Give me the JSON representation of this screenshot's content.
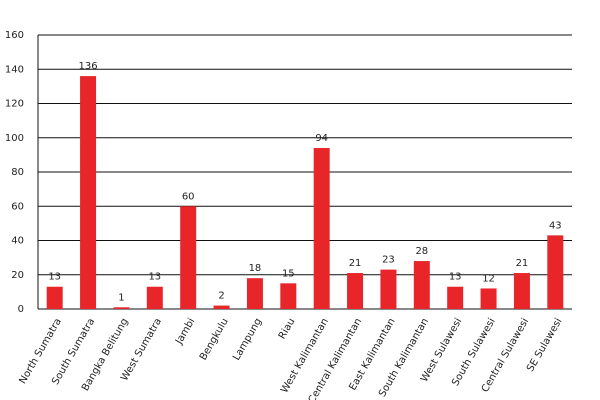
{
  "chart_data": {
    "type": "bar",
    "categories": [
      "North Sumatra",
      "South Sumatra",
      "Bangka Belitung",
      "West Sumatra",
      "Jambi",
      "Bengkulu",
      "Lampung",
      "Riau",
      "West Kalimantan",
      "Central Kalimantan",
      "East Kalimantan",
      "South Kalimantan",
      "West Sulawesi",
      "South Sulawesi",
      "Central Sulawesi",
      "SE Sulawesi"
    ],
    "values": [
      13,
      136,
      1,
      13,
      60,
      2,
      18,
      15,
      94,
      21,
      23,
      28,
      13,
      12,
      21,
      43
    ],
    "color": "#e8262a",
    "ylim": [
      0,
      160
    ],
    "yticks": [
      0,
      20,
      40,
      60,
      80,
      100,
      120,
      140,
      160
    ],
    "grid": true
  }
}
